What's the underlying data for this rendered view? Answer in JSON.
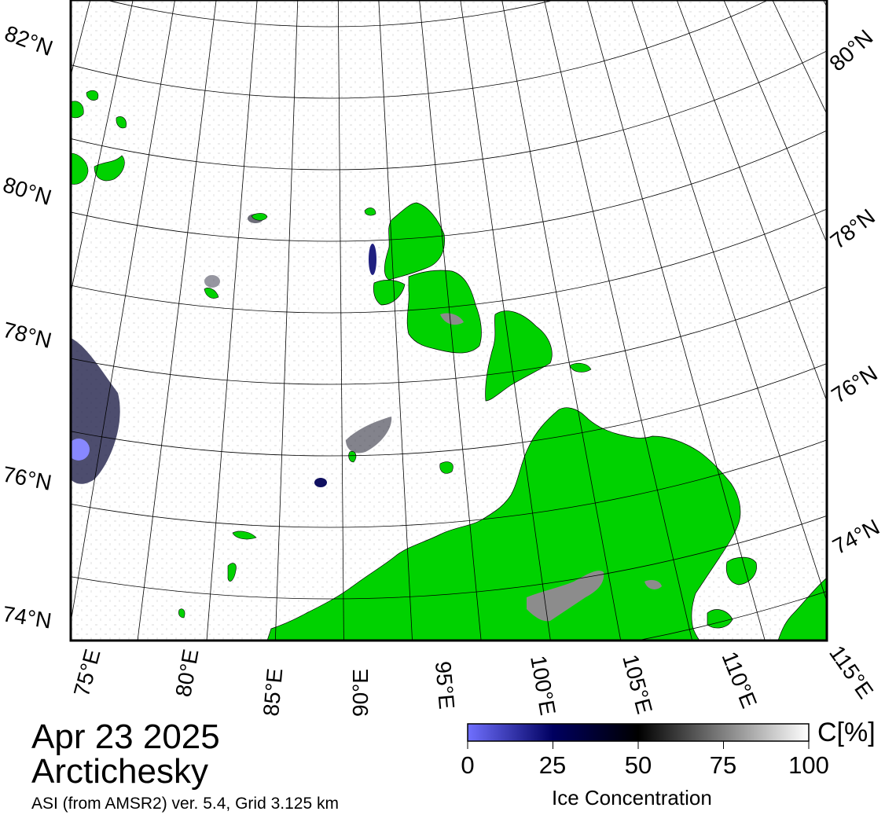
{
  "map": {
    "date": "Apr 23 2025",
    "region": "Arctichesky",
    "source": "ASI (from AMSR2) ver. 5.4,  Grid 3.125 km",
    "land_color": "#00d200",
    "land_ice_color": "#8c8c8c",
    "water_color": "#ffffff",
    "graticule_color": "#000000",
    "latitude_labels_left": [
      "82°N",
      "80°N",
      "78°N",
      "76°N",
      "74°N"
    ],
    "latitude_labels_right": [
      "80°N",
      "78°N",
      "76°N",
      "74°N"
    ],
    "longitude_labels": [
      "75°E",
      "80°E",
      "85°E",
      "90°E",
      "95°E",
      "100°E",
      "105°E",
      "110°E",
      "115°E"
    ]
  },
  "colorbar": {
    "label": "Ice Concentration",
    "unit": "C[%]",
    "ticks": [
      "0",
      "25",
      "50",
      "75",
      "100"
    ],
    "colors": [
      "#7070ff",
      "#000060",
      "#000000",
      "#808080",
      "#ffffff"
    ]
  }
}
